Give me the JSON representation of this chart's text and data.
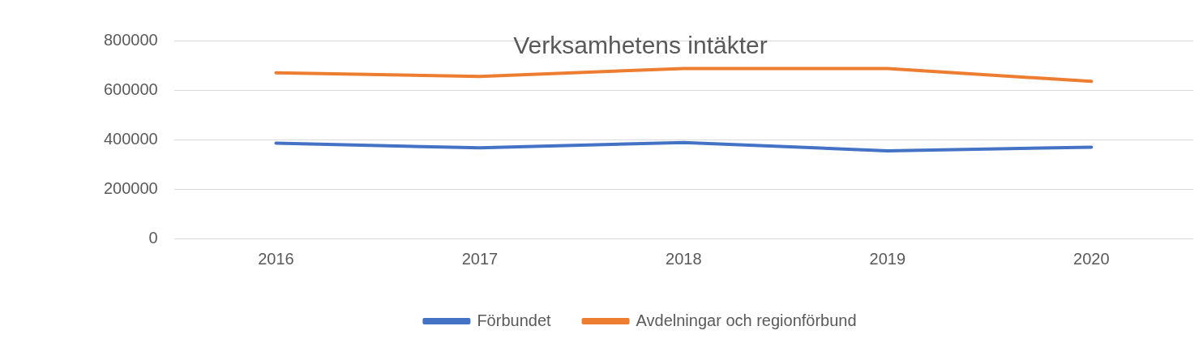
{
  "chart_data": {
    "type": "line",
    "title": "Verksamhetens intäkter",
    "categories": [
      "2016",
      "2017",
      "2018",
      "2019",
      "2020"
    ],
    "series": [
      {
        "name": "Förbundet",
        "color": "#4472c4",
        "values": [
          385000,
          366000,
          388000,
          354000,
          369000
        ]
      },
      {
        "name": "Avdelningar och regionförbund",
        "color": "#ed7d31",
        "values": [
          670000,
          655000,
          687000,
          687000,
          635000
        ]
      }
    ],
    "ylim": [
      0,
      800000
    ],
    "yticks": [
      0,
      200000,
      400000,
      600000,
      800000
    ],
    "grid": "y",
    "legend": "bottom",
    "marker": "none",
    "line_style": "solid"
  }
}
